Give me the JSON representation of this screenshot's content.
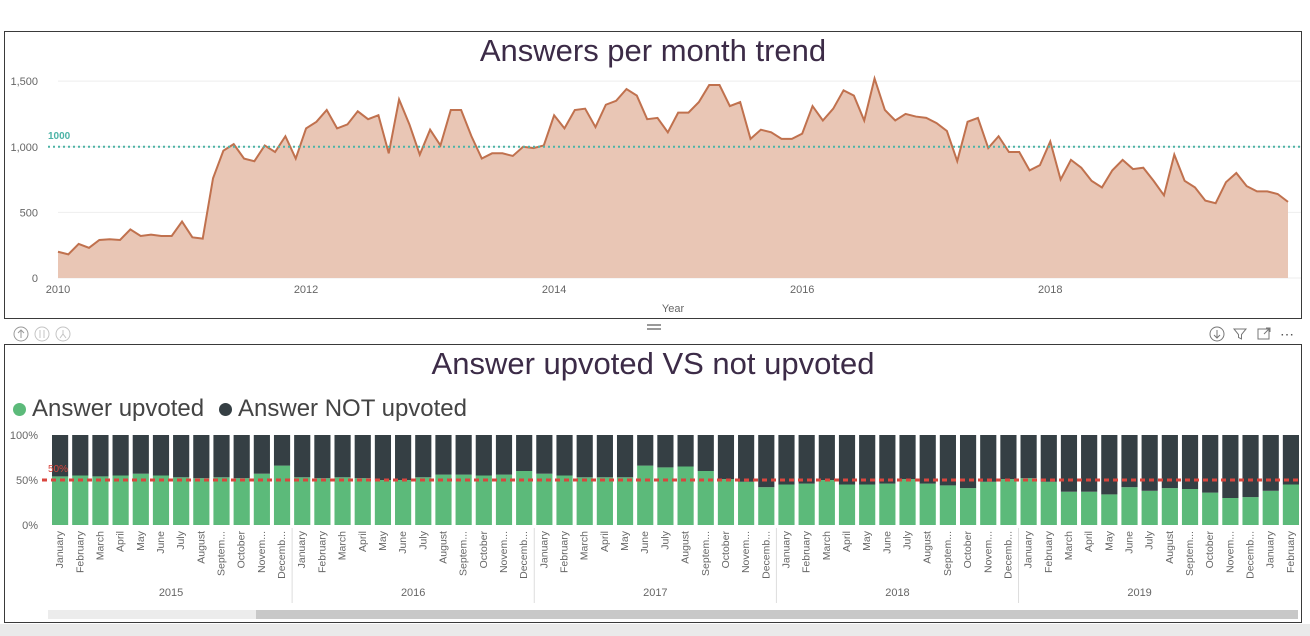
{
  "top_chart_title": "Answers per month trend",
  "bottom_chart_title": "Answer upvoted VS not upvoted",
  "colors": {
    "area_fill": "#e8c3b1",
    "area_line": "#c0714e",
    "ref_line": "#4cb3a6",
    "upvoted": "#5cba7a",
    "not_upvoted": "#353f44",
    "ref_line_pct": "#d9463e"
  },
  "toolbar": {
    "up_icon": "arrow-up-circle-icon",
    "down_icon": "arrow-down-circle-icon",
    "expand_icon": "expand-hierarchy-icon",
    "download_icon": "drill-down-icon",
    "filter_icon": "filter-icon",
    "focus_icon": "focus-mode-icon",
    "more_icon": "more-options-icon"
  },
  "chart_data": [
    {
      "type": "area",
      "title": "Answers per month trend",
      "xlabel": "Year",
      "ylabel": "",
      "ylim": [
        0,
        1600
      ],
      "y_ticks": [
        "0",
        "500",
        "1,000",
        "1,500"
      ],
      "x_ticks": [
        "2010",
        "2012",
        "2014",
        "2016",
        "2018"
      ],
      "reference_line": {
        "value": 1000,
        "label": "1000"
      },
      "grid": true,
      "start": "2010-01",
      "values": [
        200,
        180,
        260,
        230,
        290,
        295,
        290,
        370,
        320,
        330,
        320,
        320,
        430,
        310,
        300,
        760,
        970,
        1020,
        910,
        890,
        1010,
        960,
        1080,
        910,
        1140,
        1190,
        1280,
        1140,
        1170,
        1270,
        1210,
        1240,
        950,
        1360,
        1170,
        940,
        1130,
        1010,
        1280,
        1280,
        1080,
        910,
        950,
        950,
        930,
        1000,
        990,
        1010,
        1240,
        1140,
        1280,
        1290,
        1150,
        1320,
        1350,
        1440,
        1390,
        1210,
        1220,
        1110,
        1260,
        1260,
        1340,
        1470,
        1470,
        1310,
        1340,
        1060,
        1130,
        1110,
        1060,
        1060,
        1100,
        1310,
        1200,
        1290,
        1430,
        1390,
        1200,
        1520,
        1280,
        1200,
        1250,
        1230,
        1220,
        1180,
        1120,
        890,
        1190,
        1220,
        990,
        1080,
        960,
        960,
        820,
        860,
        1040,
        750,
        900,
        840,
        740,
        690,
        820,
        900,
        830,
        840,
        740,
        630,
        940,
        740,
        690,
        590,
        570,
        730,
        800,
        700,
        660,
        660,
        640,
        580
      ]
    },
    {
      "type": "bar",
      "title": "Answer upvoted VS not upvoted",
      "stacked": "100%",
      "y_ticks": [
        "0%",
        "50%",
        "100%"
      ],
      "reference_line": {
        "value": 50,
        "label": "50%"
      },
      "legend": "top-left",
      "years": [
        "2015",
        "2016",
        "2017",
        "2018",
        "2019"
      ],
      "months": [
        "January",
        "February",
        "March",
        "April",
        "May",
        "June",
        "July",
        "August",
        "Septem...",
        "October",
        "Novem...",
        "Decemb..."
      ],
      "series": [
        {
          "name": "Answer upvoted",
          "values": [
            54,
            55,
            54,
            55,
            57,
            55,
            53,
            52,
            53,
            52,
            57,
            66,
            53,
            52,
            53,
            52,
            50,
            50,
            53,
            56,
            56,
            55,
            56,
            60,
            57,
            55,
            53,
            53,
            53,
            66,
            64,
            65,
            60,
            51,
            48,
            42,
            45,
            46,
            50,
            45,
            45,
            46,
            51,
            46,
            44,
            41,
            48,
            51,
            52,
            48,
            37,
            37,
            34,
            42,
            38,
            41,
            40,
            36,
            30,
            31,
            38,
            45
          ]
        },
        {
          "name": "Answer NOT upvoted",
          "values": [
            46,
            45,
            46,
            45,
            43,
            45,
            47,
            48,
            47,
            48,
            43,
            34,
            47,
            48,
            47,
            48,
            50,
            50,
            47,
            44,
            44,
            45,
            44,
            40,
            43,
            45,
            47,
            47,
            47,
            34,
            36,
            35,
            40,
            49,
            52,
            58,
            55,
            54,
            50,
            55,
            55,
            54,
            49,
            54,
            56,
            59,
            52,
            49,
            48,
            52,
            63,
            63,
            66,
            58,
            62,
            59,
            60,
            64,
            70,
            69,
            62,
            55
          ]
        }
      ]
    }
  ]
}
